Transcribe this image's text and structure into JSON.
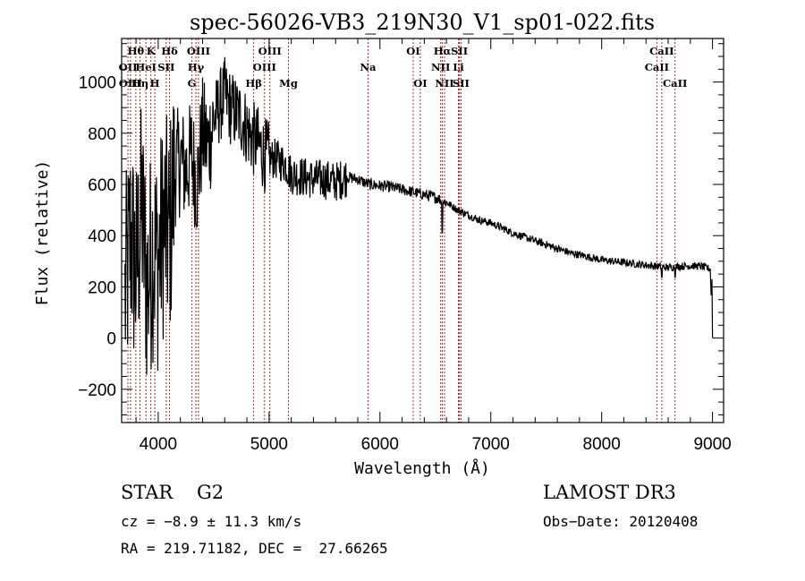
{
  "chart_data": {
    "type": "line",
    "title": "spec-56026-VB3_219N30_V1_sp01-022.fits",
    "xlabel": "Wavelength (Å)",
    "ylabel": "Flux (relative)",
    "xlim": [
      3670,
      9100
    ],
    "ylim": [
      -330,
      1170
    ],
    "x_ticks": [
      4000,
      5000,
      6000,
      7000,
      8000,
      9000
    ],
    "x_tick_labels": [
      "4000",
      "5000",
      "6000",
      "7000",
      "8000",
      "9000"
    ],
    "x_minor_step": 200,
    "y_ticks": [
      -200,
      0,
      200,
      400,
      600,
      800,
      1000
    ],
    "y_tick_labels": [
      "−200",
      "0",
      "200",
      "400",
      "600",
      "800",
      "1000"
    ],
    "y_minor_step": 50,
    "grid": false,
    "series": [
      {
        "name": "spectrum",
        "color": "#000000",
        "envelope": {
          "x": [
            3700,
            3750,
            3800,
            3850,
            3900,
            3950,
            4000,
            4050,
            4100,
            4150,
            4200,
            4250,
            4300,
            4350,
            4400,
            4450,
            4500,
            4550,
            4600,
            4650,
            4700,
            4750,
            4800,
            4850,
            4900,
            4950,
            5000,
            5050,
            5100,
            5150,
            5200,
            5300,
            5400,
            5500,
            5600,
            5700,
            5800,
            5900,
            6000,
            6100,
            6200,
            6300,
            6400,
            6500,
            6600,
            6700,
            6800,
            6900,
            7000,
            7100,
            7200,
            7300,
            7400,
            7500,
            7600,
            7700,
            7800,
            7900,
            8000,
            8100,
            8200,
            8300,
            8400,
            8500,
            8600,
            8700,
            8800,
            8900,
            8980,
            9000
          ],
          "y": [
            150,
            400,
            250,
            500,
            200,
            350,
            300,
            450,
            400,
            650,
            700,
            650,
            720,
            600,
            800,
            750,
            850,
            900,
            950,
            900,
            880,
            860,
            820,
            780,
            760,
            720,
            700,
            700,
            690,
            680,
            640,
            630,
            620,
            620,
            610,
            630,
            620,
            600,
            595,
            590,
            580,
            570,
            560,
            550,
            530,
            500,
            480,
            460,
            450,
            430,
            410,
            395,
            380,
            365,
            350,
            335,
            325,
            315,
            305,
            300,
            295,
            290,
            285,
            280,
            275,
            280,
            282,
            280,
            270,
            0
          ]
        },
        "noise_note": "strong noise blueward of ~5700 Å; deep absorption near 6563 Å"
      }
    ],
    "spectral_lines": [
      {
        "label": "OII",
        "wavelength": 3727,
        "row": 2
      },
      {
        "label": "Hθ",
        "wavelength": 3798,
        "row": 1
      },
      {
        "label": "OIII",
        "wavelength": 3750,
        "row": 3
      },
      {
        "label": "Hη",
        "wavelength": 3835,
        "row": 3
      },
      {
        "label": "HeI",
        "wavelength": 3889,
        "row": 2
      },
      {
        "label": "K",
        "wavelength": 3934,
        "row": 1
      },
      {
        "label": "H",
        "wavelength": 3969,
        "row": 3
      },
      {
        "label": "SII",
        "wavelength": 4072,
        "row": 2
      },
      {
        "label": "Hδ",
        "wavelength": 4102,
        "row": 1
      },
      {
        "label": "G",
        "wavelength": 4304,
        "row": 3
      },
      {
        "label": "Hγ",
        "wavelength": 4340,
        "row": 2
      },
      {
        "label": "OIII",
        "wavelength": 4363,
        "row": 1
      },
      {
        "label": "Hβ",
        "wavelength": 4861,
        "row": 3
      },
      {
        "label": "OIII",
        "wavelength": 4959,
        "row": 2
      },
      {
        "label": "OIII",
        "wavelength": 5007,
        "row": 1
      },
      {
        "label": "Mg",
        "wavelength": 5175,
        "row": 3
      },
      {
        "label": "Na",
        "wavelength": 5893,
        "row": 2
      },
      {
        "label": "OI",
        "wavelength": 6300,
        "row": 1
      },
      {
        "label": "OI",
        "wavelength": 6364,
        "row": 3
      },
      {
        "label": "NII",
        "wavelength": 6548,
        "row": 2
      },
      {
        "label": "Hα",
        "wavelength": 6563,
        "row": 1
      },
      {
        "label": "NII",
        "wavelength": 6583,
        "row": 3
      },
      {
        "label": "Li",
        "wavelength": 6708,
        "row": 2
      },
      {
        "label": "SII",
        "wavelength": 6717,
        "row": 1
      },
      {
        "label": "SII",
        "wavelength": 6731,
        "row": 3
      },
      {
        "label": "CaII",
        "wavelength": 8498,
        "row": 2
      },
      {
        "label": "CaII",
        "wavelength": 8542,
        "row": 1
      },
      {
        "label": "CaII",
        "wavelength": 8662,
        "row": 3
      }
    ],
    "line_marker_color": "#b22222"
  },
  "info": {
    "object_class": "STAR",
    "subclass": "G2",
    "redshift": "cz = −8.9 ± 11.3 km/s",
    "coords": "RA = 219.71182, DEC =  27.66265",
    "survey": "LAMOST DR3",
    "obs_date": "Obs−Date: 20120408"
  }
}
